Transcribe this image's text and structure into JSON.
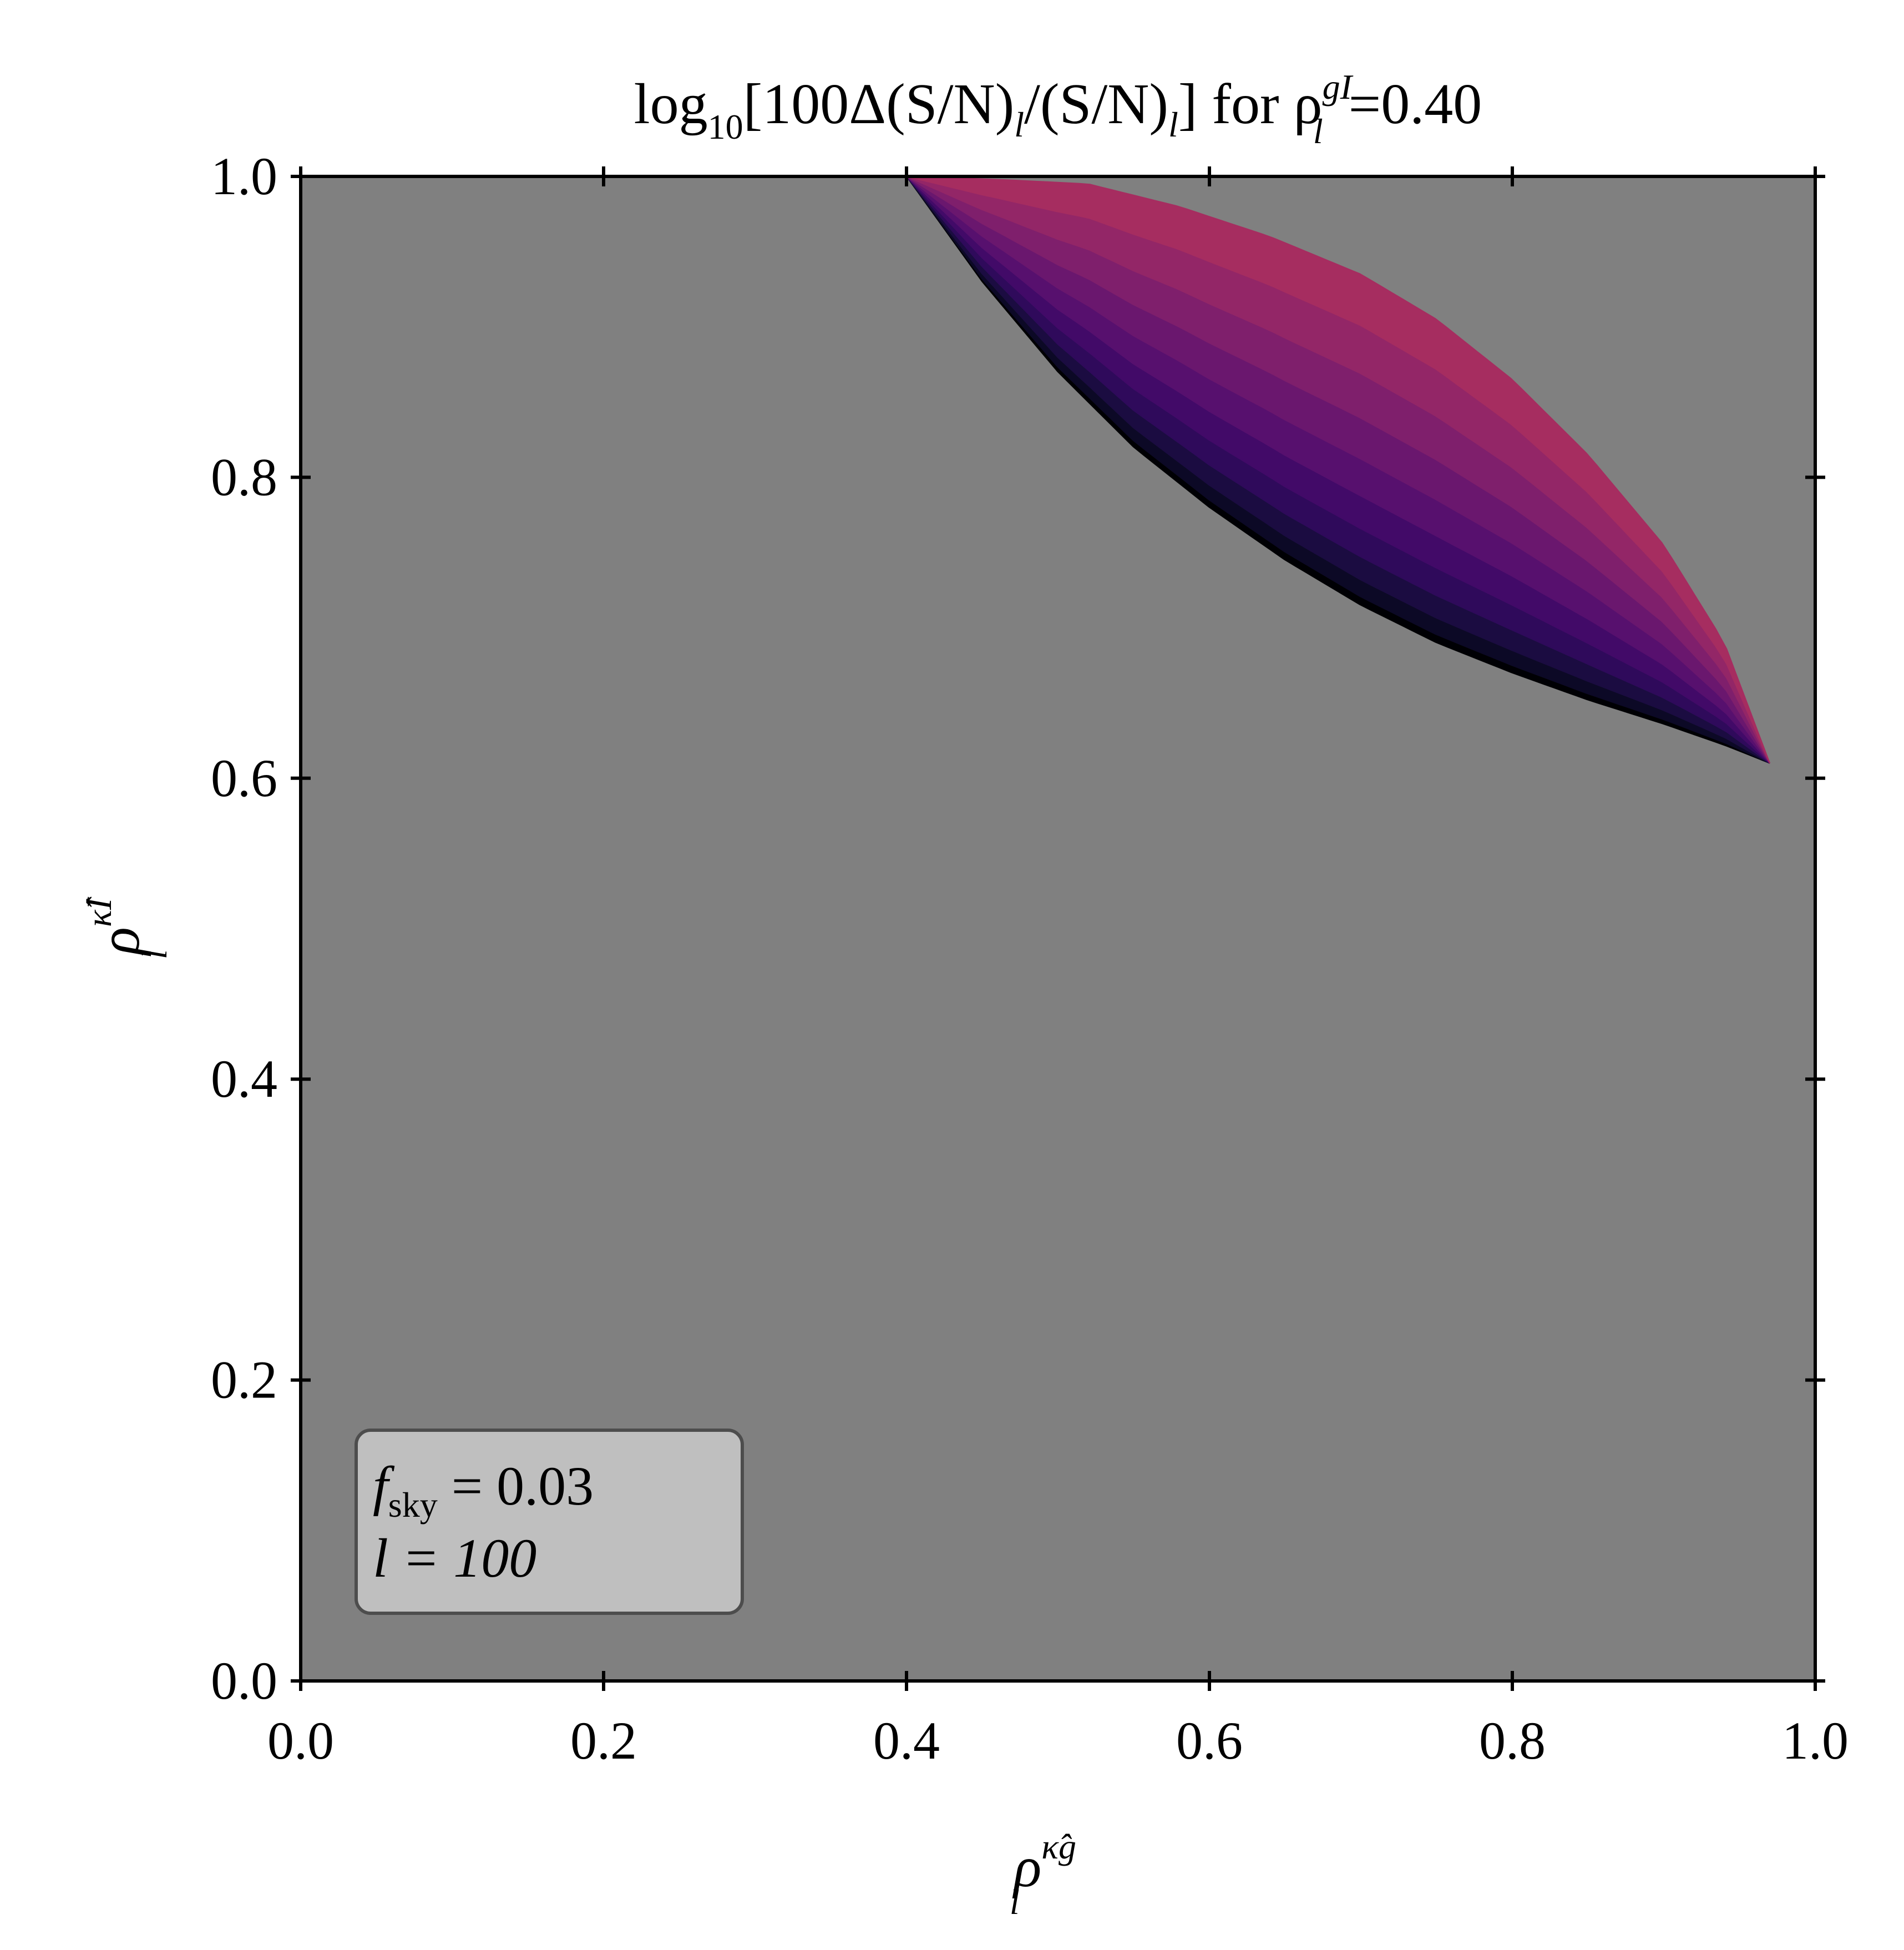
{
  "chart_data": {
    "type": "heatmap",
    "title": "log10[100Δ(S/N)l/(S/N)l] for ρlgI=0.40",
    "title_parts": {
      "log": "log",
      "log_sub": "10",
      "body": "[100Δ(S/N)",
      "body_sub": "l",
      "body2": "/(S/N)",
      "body2_sub": "l",
      "body3": "] for ρ",
      "rho_sub": "l",
      "rho_sup": "gI",
      "value": "=0.40"
    },
    "xlabel": "ρlκ̂g",
    "xlabel_parts": {
      "base": "ρ",
      "sub": "l",
      "sup": "κ̂g"
    },
    "ylabel": "ρlκ̂I",
    "ylabel_parts": {
      "base": "ρ",
      "sub": "l",
      "sup": "κ̂I"
    },
    "xlim": [
      0.0,
      1.0
    ],
    "ylim": [
      0.0,
      1.0
    ],
    "x_ticks": [
      "0.0",
      "0.2",
      "0.4",
      "0.6",
      "0.8",
      "1.0"
    ],
    "y_ticks": [
      "0.0",
      "0.2",
      "0.4",
      "0.6",
      "0.8",
      "1.0"
    ],
    "background_color": "#808080",
    "colormap": "magma",
    "region": {
      "description_points_note": "valid (filled) region boundary in data units",
      "lower_boundary": [
        [
          0.4,
          1.0
        ],
        [
          0.45,
          0.93
        ],
        [
          0.5,
          0.87
        ],
        [
          0.55,
          0.82
        ],
        [
          0.6,
          0.78
        ],
        [
          0.65,
          0.745
        ],
        [
          0.7,
          0.715
        ],
        [
          0.75,
          0.69
        ],
        [
          0.8,
          0.67
        ],
        [
          0.85,
          0.652
        ],
        [
          0.9,
          0.636
        ],
        [
          0.94,
          0.622
        ],
        [
          0.97,
          0.61
        ]
      ],
      "upper_boundary": [
        [
          0.4,
          1.0
        ],
        [
          0.46,
          0.998
        ],
        [
          0.52,
          0.995
        ],
        [
          0.58,
          0.98
        ],
        [
          0.64,
          0.96
        ],
        [
          0.7,
          0.935
        ],
        [
          0.75,
          0.905
        ],
        [
          0.8,
          0.865
        ],
        [
          0.85,
          0.815
        ],
        [
          0.9,
          0.755
        ],
        [
          0.94,
          0.69
        ],
        [
          0.97,
          0.61
        ]
      ]
    },
    "contour_levels": 10,
    "level_colors": [
      "#000004",
      "#0c0926",
      "#1b0c41",
      "#2f0a5b",
      "#420a68",
      "#57106e",
      "#6a176e",
      "#7f1f6c",
      "#932667",
      "#a62d60"
    ],
    "annotation": {
      "line1_base": "f",
      "line1_sub": "sky",
      "line1_rest": " = 0.03",
      "line2": "l = 100",
      "text": "fsky = 0.03\nl = 100"
    },
    "grid": false
  }
}
